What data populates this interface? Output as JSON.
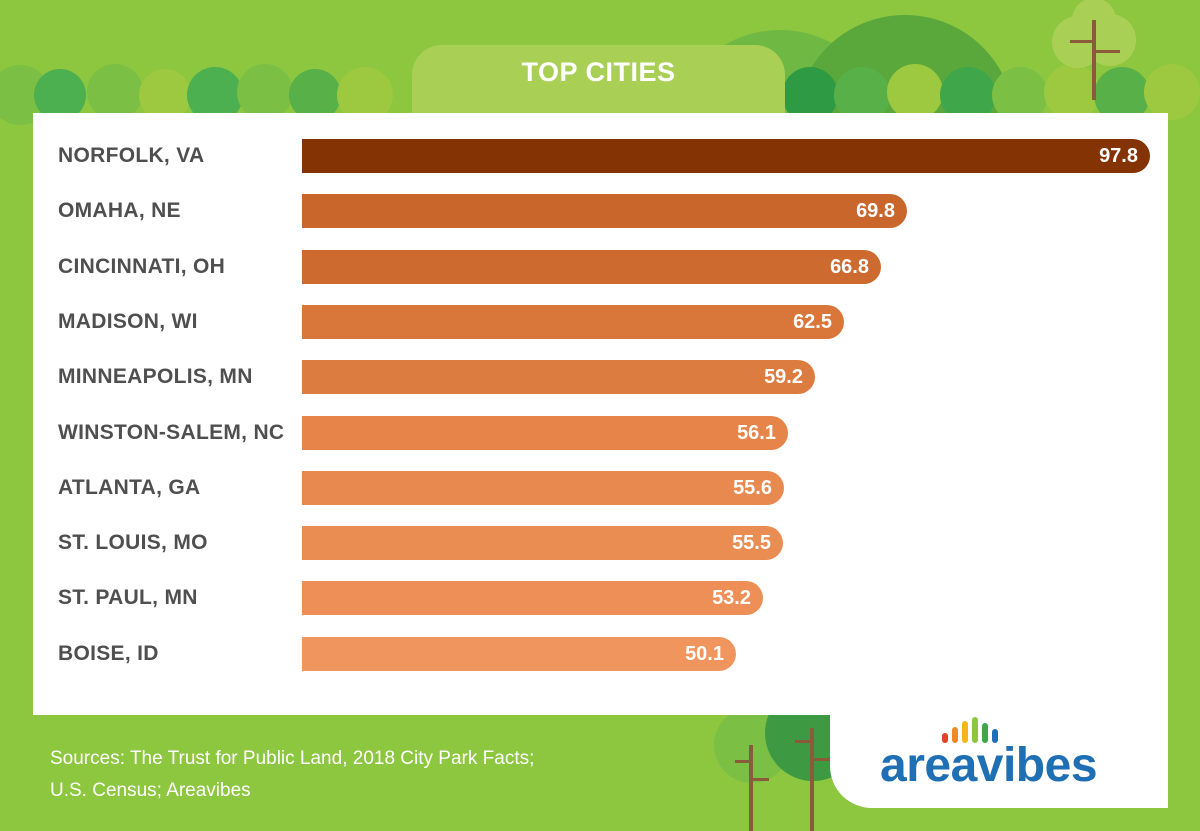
{
  "chart_data": {
    "type": "bar",
    "orientation": "horizontal",
    "title": "TOP CITIES",
    "categories": [
      "NORFOLK, VA",
      "OMAHA, NE",
      "CINCINNATI, OH",
      "MADISON, WI",
      "MINNEAPOLIS, MN",
      "WINSTON-SALEM, NC",
      "ATLANTA, GA",
      "ST. LOUIS, MO",
      "ST. PAUL, MN",
      "BOISE, ID"
    ],
    "values": [
      97.8,
      69.8,
      66.8,
      62.5,
      59.2,
      56.1,
      55.6,
      55.5,
      53.2,
      50.1
    ],
    "value_labels": [
      "97.8",
      "69.8",
      "66.8",
      "62.5",
      "59.2",
      "56.1",
      "55.6",
      "55.5",
      "53.2",
      "50.1"
    ],
    "xlim": [
      0,
      97.8
    ],
    "grid": false,
    "legend": "none",
    "bar_colors": [
      "#843404",
      "#c9662b",
      "#cd6a2f",
      "#d9763a",
      "#dd7c40",
      "#e6844a",
      "#e88a50",
      "#ea8d53",
      "#ed8f57",
      "#f0955d"
    ]
  },
  "colors": {
    "background_green": "#8dc63f",
    "title_tab": "#a9d055",
    "label_text": "#4f4f4f",
    "logo_blue": "#1f6fb4"
  },
  "sources": {
    "line1": "Sources: The Trust for Public Land, 2018 City Park Facts;",
    "line2": "U.S. Census; Areavibes"
  },
  "logo": {
    "text": "areavibes"
  }
}
